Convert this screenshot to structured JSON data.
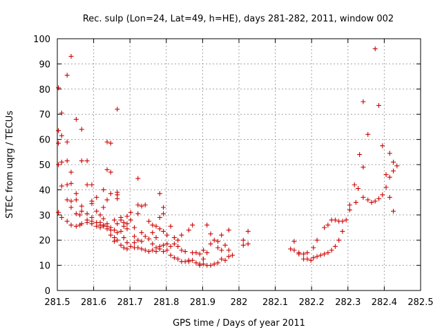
{
  "chart_data": {
    "type": "scatter",
    "title": "Rec. sulp (Lon=24, Lat=49, h=HE), days 281-282, 2011, window 002",
    "xlabel": "GPS time / Days of year 2011",
    "ylabel": "STEC from uqrg / TECUs",
    "xlim": [
      281.5,
      282.5
    ],
    "ylim": [
      0,
      100
    ],
    "xticks": [
      281.5,
      281.6,
      281.7,
      281.8,
      281.9,
      282.0,
      282.1,
      282.2,
      282.3,
      282.4,
      282.5
    ],
    "xtick_labels": [
      "281.5",
      "281.6",
      "281.7",
      "281.8",
      "281.9",
      "282",
      "282.1",
      "282.2",
      "282.3",
      "282.4",
      "282.5"
    ],
    "yticks": [
      0,
      10,
      20,
      30,
      40,
      50,
      60,
      70,
      80,
      90,
      100
    ],
    "grid": true,
    "marker": "+",
    "color": "#cc0000",
    "points": [
      [
        281.503,
        80.5
      ],
      [
        281.503,
        63.5
      ],
      [
        281.503,
        58.5
      ],
      [
        281.503,
        50
      ],
      [
        281.503,
        31
      ],
      [
        281.512,
        70.5
      ],
      [
        281.512,
        61.5
      ],
      [
        281.512,
        51
      ],
      [
        281.512,
        41.5
      ],
      [
        281.512,
        29
      ],
      [
        281.527,
        85.5
      ],
      [
        281.527,
        59
      ],
      [
        281.527,
        51.5
      ],
      [
        281.527,
        42
      ],
      [
        281.527,
        36
      ],
      [
        281.527,
        27.5
      ],
      [
        281.538,
        93
      ],
      [
        281.538,
        47
      ],
      [
        281.538,
        42.5
      ],
      [
        281.538,
        35.5
      ],
      [
        281.538,
        33
      ],
      [
        281.538,
        26
      ],
      [
        281.552,
        68
      ],
      [
        281.552,
        38.5
      ],
      [
        281.552,
        36
      ],
      [
        281.552,
        30.5
      ],
      [
        281.552,
        25.5
      ],
      [
        281.562,
        30
      ],
      [
        281.562,
        26
      ],
      [
        281.567,
        64
      ],
      [
        281.567,
        51.5
      ],
      [
        281.567,
        33.5
      ],
      [
        281.567,
        31.5
      ],
      [
        281.567,
        26.5
      ],
      [
        281.582,
        51.5
      ],
      [
        281.582,
        42
      ],
      [
        281.582,
        30.5
      ],
      [
        281.582,
        28
      ],
      [
        281.582,
        27
      ],
      [
        281.595,
        42
      ],
      [
        281.595,
        35.5
      ],
      [
        281.595,
        34.5
      ],
      [
        281.595,
        29
      ],
      [
        281.595,
        27.5
      ],
      [
        281.595,
        26.5
      ],
      [
        281.608,
        37
      ],
      [
        281.608,
        31.5
      ],
      [
        281.608,
        27
      ],
      [
        281.608,
        25.5
      ],
      [
        281.618,
        30
      ],
      [
        281.618,
        27
      ],
      [
        281.618,
        26
      ],
      [
        281.618,
        25
      ],
      [
        281.627,
        40
      ],
      [
        281.627,
        33
      ],
      [
        281.627,
        28.5
      ],
      [
        281.627,
        26
      ],
      [
        281.627,
        25.5
      ],
      [
        281.637,
        59
      ],
      [
        281.637,
        48
      ],
      [
        281.637,
        36
      ],
      [
        281.637,
        26.5
      ],
      [
        281.637,
        25.5
      ],
      [
        281.637,
        24.5
      ],
      [
        281.647,
        58.5
      ],
      [
        281.647,
        47
      ],
      [
        281.647,
        38.5
      ],
      [
        281.647,
        25
      ],
      [
        281.647,
        24
      ],
      [
        281.647,
        22
      ],
      [
        281.657,
        28
      ],
      [
        281.657,
        24
      ],
      [
        281.657,
        21
      ],
      [
        281.657,
        19.5
      ],
      [
        281.665,
        72
      ],
      [
        281.665,
        39
      ],
      [
        281.665,
        38
      ],
      [
        281.665,
        36.5
      ],
      [
        281.665,
        26.5
      ],
      [
        281.665,
        23
      ],
      [
        281.665,
        20
      ],
      [
        281.675,
        29
      ],
      [
        281.675,
        28
      ],
      [
        281.675,
        23.5
      ],
      [
        281.675,
        18
      ],
      [
        281.683,
        27
      ],
      [
        281.683,
        25.5
      ],
      [
        281.683,
        21
      ],
      [
        281.683,
        17
      ],
      [
        281.692,
        29.5
      ],
      [
        281.692,
        26.5
      ],
      [
        281.692,
        24.5
      ],
      [
        281.692,
        19
      ],
      [
        281.692,
        16.5
      ],
      [
        281.702,
        31
      ],
      [
        281.702,
        28
      ],
      [
        281.702,
        17.5
      ],
      [
        281.712,
        25
      ],
      [
        281.712,
        21.5
      ],
      [
        281.712,
        19
      ],
      [
        281.712,
        17
      ],
      [
        281.722,
        44.5
      ],
      [
        281.722,
        34
      ],
      [
        281.722,
        30.5
      ],
      [
        281.722,
        20
      ],
      [
        281.722,
        17
      ],
      [
        281.732,
        33.5
      ],
      [
        281.732,
        23
      ],
      [
        281.732,
        19.5
      ],
      [
        281.732,
        16.5
      ],
      [
        281.742,
        34
      ],
      [
        281.742,
        21.5
      ],
      [
        281.742,
        16
      ],
      [
        281.752,
        27.5
      ],
      [
        281.752,
        20.5
      ],
      [
        281.752,
        15.5
      ],
      [
        281.762,
        26
      ],
      [
        281.762,
        23
      ],
      [
        281.762,
        18.5
      ],
      [
        281.762,
        16
      ],
      [
        281.772,
        25.5
      ],
      [
        281.772,
        21
      ],
      [
        281.772,
        17
      ],
      [
        281.772,
        15.5
      ],
      [
        281.782,
        38.5
      ],
      [
        281.782,
        29
      ],
      [
        281.782,
        24.5
      ],
      [
        281.782,
        17.5
      ],
      [
        281.782,
        16.5
      ],
      [
        281.792,
        33
      ],
      [
        281.792,
        30.5
      ],
      [
        281.792,
        23.5
      ],
      [
        281.792,
        18
      ],
      [
        281.792,
        15.5
      ],
      [
        281.802,
        22
      ],
      [
        281.802,
        18.5
      ],
      [
        281.802,
        16
      ],
      [
        281.812,
        25.5
      ],
      [
        281.812,
        17.5
      ],
      [
        281.812,
        14
      ],
      [
        281.822,
        21
      ],
      [
        281.822,
        18.5
      ],
      [
        281.822,
        13
      ],
      [
        281.832,
        20
      ],
      [
        281.832,
        17.5
      ],
      [
        281.832,
        12.5
      ],
      [
        281.842,
        22
      ],
      [
        281.842,
        16
      ],
      [
        281.842,
        11.5
      ],
      [
        281.852,
        15.5
      ],
      [
        281.852,
        11.5
      ],
      [
        281.862,
        24
      ],
      [
        281.862,
        12
      ],
      [
        281.862,
        11.5
      ],
      [
        281.872,
        26
      ],
      [
        281.872,
        15
      ],
      [
        281.872,
        12
      ],
      [
        281.882,
        15
      ],
      [
        281.882,
        11
      ],
      [
        281.892,
        14.5
      ],
      [
        281.892,
        10.5
      ],
      [
        281.892,
        10
      ],
      [
        281.902,
        16
      ],
      [
        281.902,
        12.5
      ],
      [
        281.902,
        10.5
      ],
      [
        281.912,
        26
      ],
      [
        281.912,
        15
      ],
      [
        281.912,
        10
      ],
      [
        281.922,
        22.5
      ],
      [
        281.922,
        18.5
      ],
      [
        281.922,
        10
      ],
      [
        281.932,
        20
      ],
      [
        281.932,
        10.5
      ],
      [
        281.942,
        19.5
      ],
      [
        281.942,
        17
      ],
      [
        281.942,
        11
      ],
      [
        281.952,
        22
      ],
      [
        281.952,
        16
      ],
      [
        281.952,
        12.5
      ],
      [
        281.962,
        18
      ],
      [
        281.962,
        12
      ],
      [
        281.972,
        24
      ],
      [
        281.972,
        16
      ],
      [
        281.972,
        13.5
      ],
      [
        281.982,
        14
      ],
      [
        282.012,
        20
      ],
      [
        282.012,
        18
      ],
      [
        282.025,
        23.5
      ],
      [
        282.025,
        18.5
      ],
      [
        282.142,
        16.5
      ],
      [
        282.152,
        19.5
      ],
      [
        282.152,
        16
      ],
      [
        282.165,
        15
      ],
      [
        282.165,
        14.5
      ],
      [
        282.178,
        14.5
      ],
      [
        282.178,
        12.5
      ],
      [
        282.188,
        15
      ],
      [
        282.188,
        12.5
      ],
      [
        282.198,
        12
      ],
      [
        282.205,
        17
      ],
      [
        282.205,
        13
      ],
      [
        282.215,
        20
      ],
      [
        282.215,
        13.5
      ],
      [
        282.225,
        14
      ],
      [
        282.235,
        25
      ],
      [
        282.235,
        14.5
      ],
      [
        282.245,
        26
      ],
      [
        282.245,
        15
      ],
      [
        282.255,
        28
      ],
      [
        282.255,
        16
      ],
      [
        282.265,
        28
      ],
      [
        282.265,
        17.5
      ],
      [
        282.275,
        27.5
      ],
      [
        282.275,
        20
      ],
      [
        282.285,
        27.5
      ],
      [
        282.285,
        23.5
      ],
      [
        282.295,
        28
      ],
      [
        282.305,
        34
      ],
      [
        282.305,
        32
      ],
      [
        282.318,
        42
      ],
      [
        282.322,
        35
      ],
      [
        282.328,
        40.5
      ],
      [
        282.332,
        54
      ],
      [
        282.342,
        75
      ],
      [
        282.342,
        49
      ],
      [
        282.342,
        37
      ],
      [
        282.355,
        62
      ],
      [
        282.355,
        36
      ],
      [
        282.365,
        35
      ],
      [
        282.375,
        96
      ],
      [
        282.375,
        35.5
      ],
      [
        282.385,
        73.5
      ],
      [
        282.385,
        36.5
      ],
      [
        282.395,
        57.5
      ],
      [
        282.395,
        38
      ],
      [
        282.405,
        46
      ],
      [
        282.405,
        41
      ],
      [
        282.415,
        54.5
      ],
      [
        282.415,
        45
      ],
      [
        282.415,
        37
      ],
      [
        282.425,
        51
      ],
      [
        282.425,
        47.5
      ],
      [
        282.425,
        31.5
      ],
      [
        282.435,
        49.5
      ]
    ]
  }
}
